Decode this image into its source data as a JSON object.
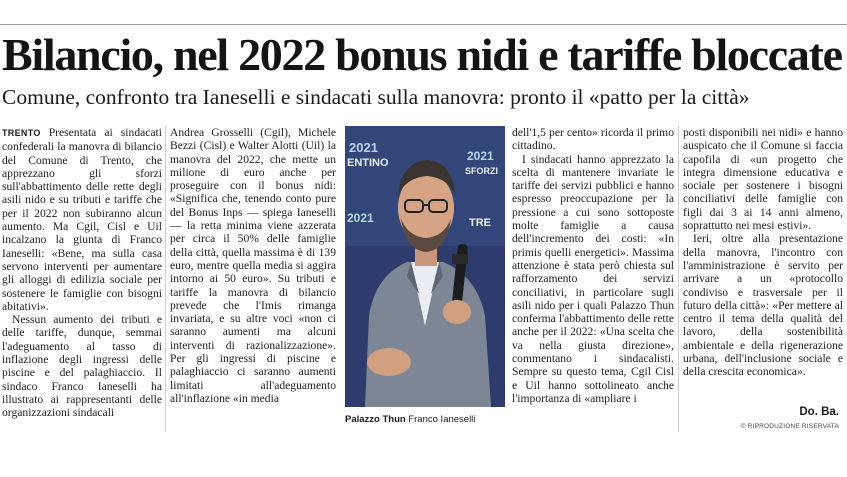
{
  "headline": "Bilancio, nel 2022 bonus nidi e tariffe bloccate",
  "subheadline": "Comune, confronto tra Ianeselli e sindacati sulla manovra: pronto il «patto per la città»",
  "dateline": "TRENTO",
  "column1": {
    "p1": "Presentata ai sindacati confederali la manovra di bilancio del Comune di Trento, che apprezzano gli sforzi sull'abbattimento delle rette degli asili nido e su tributi e tariffe che per il 2022 non subiranno alcun aumento. Ma Cgil, Cisl e Uil incalzano la giunta di Franco Ianeselli: «Bene, ma sulla casa servono interventi per aumentare gli alloggi di edilizia sociale per sostenere le famiglie con bisogni abitativi».",
    "p2": "Nessun aumento dei tributi e delle tariffe, dunque, semmai l'adeguamento al tasso di inflazione degli ingressi delle piscine e del palaghiaccio. Il sindaco Franco Ianeselli ha illustrato ai rappresentanti delle organizzazioni sindacali"
  },
  "column2": {
    "p1": "Andrea Grosselli (Cgil), Michele Bezzi (Cisl) e Walter Alotti (Uil) la manovra del 2022, che mette un milione di euro anche per proseguire con il bonus nidi: «Significa che, tenendo conto pure del Bonus Inps — spiega Ianeselli — la retta minima viene azzerata per circa il 50% delle famiglie della città, quella massima è di 139 euro, mentre quella media si aggira intorno ai 50 euro». Su tributi e tariffe la manovra di bilancio prevede che l'Imis rimanga invariata, e su altre voci «non ci saranno aumenti ma alcuni interventi di razionalizzazione». Per gli ingressi di piscine e palaghiaccio ci saranno aumenti limitati all'adeguamento all'inflazione «in media"
  },
  "column4": {
    "p1": "dell'1,5 per cento» ricorda il primo cittadino.",
    "p2": "I sindacati hanno apprezzato la scelta di mantenere invariate le tariffe dei servizi pubblici e hanno espresso preoccupazione per la pressione a cui sono sottoposte molte famiglie a causa dell'incremento dei costi: «In primis quelli energetici». Massima attenzione è stata però chiesta sul rafforzamento dei servizi conciliativi, in particolare sugli asili nido per i quali Palazzo Thun conferma l'abbattimento delle rette anche per il 2022: «Una scelta che va nella giusta direzione», commentano i sindacalisti. Sempre su questo tema, Cgil Cisl e Uil hanno sottolineato anche l'importanza di «ampliare i"
  },
  "column5": {
    "p1": "posti disponibili nei nidi» e hanno auspicato che il Comune si faccia capofila di «un progetto che integra dimensione educativa e sociale per sostenere i bisogni conciliativi delle famiglie con figli dai 3 ai 14 anni almeno, soprattutto nei mesi estivi».",
    "p2": "Ieri, oltre alla presentazione della manovra, l'incontro con l'amministrazione è servito per arrivare a un «protocollo condiviso e trasversale per il futuro della città»: «Per mettere al centro il tema della qualità del lavoro, della sostenibilità ambientale e della rigenerazione urbana, dell'inclusione sociale e della crescita economica»."
  },
  "photo": {
    "backdrop_text_1": "2021",
    "backdrop_text_2": "ENTINO",
    "backdrop_text_3": "2021",
    "backdrop_text_4": "SFORZI",
    "backdrop_text_5": "2021",
    "backdrop_text_6": "TRE",
    "backdrop_color": "#2d3c6c"
  },
  "caption": {
    "place": "Palazzo Thun",
    "person": "Franco Ianeselli"
  },
  "signature": "Do. Ba.",
  "copyright": "© RIPRODUZIONE RISERVATA"
}
